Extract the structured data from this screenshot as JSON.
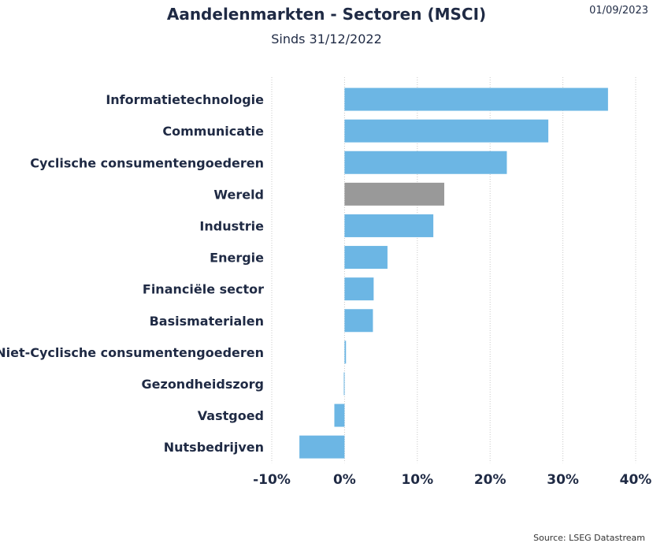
{
  "header": {
    "title": "Aandelenmarkten - Sectoren (MSCI)",
    "subtitle": "Sinds 31/12/2022",
    "date": "01/09/2023"
  },
  "footer": {
    "source": "Source: LSEG Datastream"
  },
  "colors": {
    "bar": "#6cb6e4",
    "highlight": "#999999",
    "grid": "#c8c8c8",
    "text": "#1f2a44"
  },
  "chart_data": {
    "type": "bar",
    "orientation": "horizontal",
    "title": "Aandelenmarkten - Sectoren (MSCI)",
    "subtitle": "Sinds 31/12/2022",
    "categories": [
      "Informatietechnologie",
      "Communicatie",
      "Cyclische consumentengoederen",
      "Wereld",
      "Industrie",
      "Energie",
      "Financiële sector",
      "Basismaterialen",
      "Niet-Cyclische consumentengoederen",
      "Gezondheidszorg",
      "Vastgoed",
      "Nutsbedrijven"
    ],
    "values": [
      36.2,
      28.0,
      22.3,
      13.7,
      12.2,
      5.9,
      4.0,
      3.9,
      0.2,
      -0.1,
      -1.4,
      -6.2
    ],
    "highlight_category": "Wereld",
    "xlim": [
      -10,
      40
    ],
    "xticks": [
      -10,
      0,
      10,
      20,
      30,
      40
    ],
    "xtick_labels": [
      "-10%",
      "0%",
      "10%",
      "20%",
      "30%",
      "40%"
    ],
    "grid": "vertical dotted",
    "legend": "none",
    "xlabel": "",
    "ylabel": ""
  }
}
